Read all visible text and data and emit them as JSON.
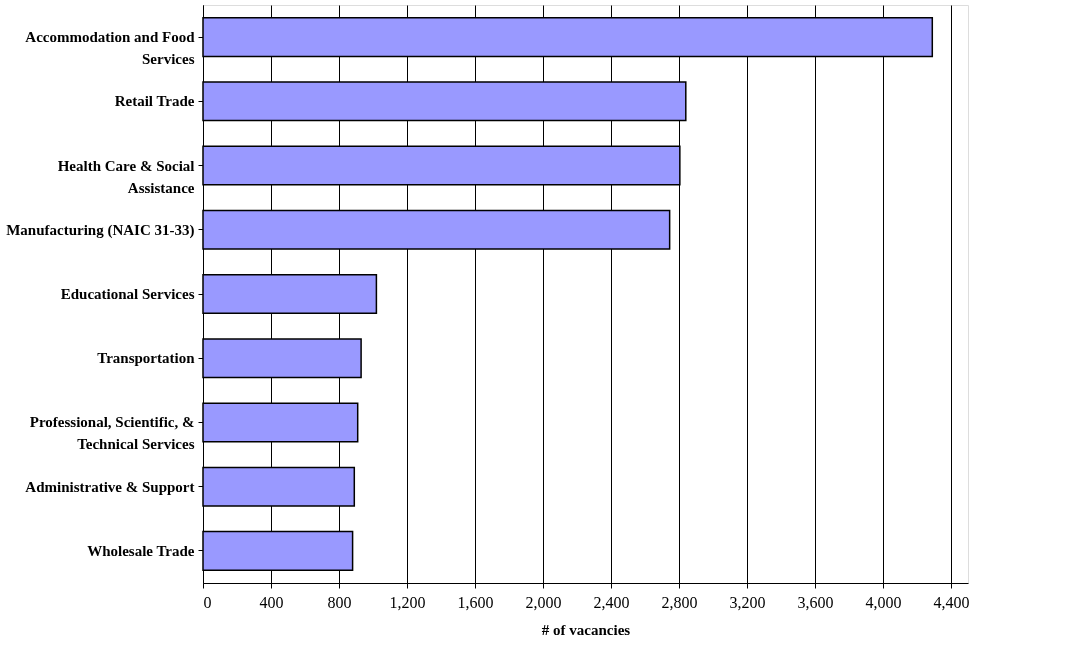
{
  "chart_data": {
    "type": "bar",
    "orientation": "horizontal",
    "xlabel": "# of vacancies",
    "categories": [
      "Accommodation and Food Services",
      "Retail Trade",
      "Health Care & Social Assistance",
      "Manufacturing (NAIC 31-33)",
      "Educational Services",
      "Transportation",
      "Professional, Scientific, & Technical Services",
      "Administrative & Support",
      "Wholesale Trade"
    ],
    "values": [
      4290,
      2840,
      2805,
      2745,
      1020,
      930,
      910,
      890,
      880
    ],
    "color": "#9999ff",
    "xlim": [
      0,
      4500
    ],
    "xticks": [
      {
        "value": 0,
        "label": "0"
      },
      {
        "value": 400,
        "label": "400"
      },
      {
        "value": 800,
        "label": "800"
      },
      {
        "value": 1200,
        "label": "1,200"
      },
      {
        "value": 1600,
        "label": "1,600"
      },
      {
        "value": 2000,
        "label": "2,000"
      },
      {
        "value": 2400,
        "label": "2,400"
      },
      {
        "value": 2800,
        "label": "2,800"
      },
      {
        "value": 3200,
        "label": "3,200"
      },
      {
        "value": 3600,
        "label": "3,600"
      },
      {
        "value": 4000,
        "label": "4,000"
      },
      {
        "value": 4400,
        "label": "4,400"
      }
    ],
    "grid": "x"
  }
}
